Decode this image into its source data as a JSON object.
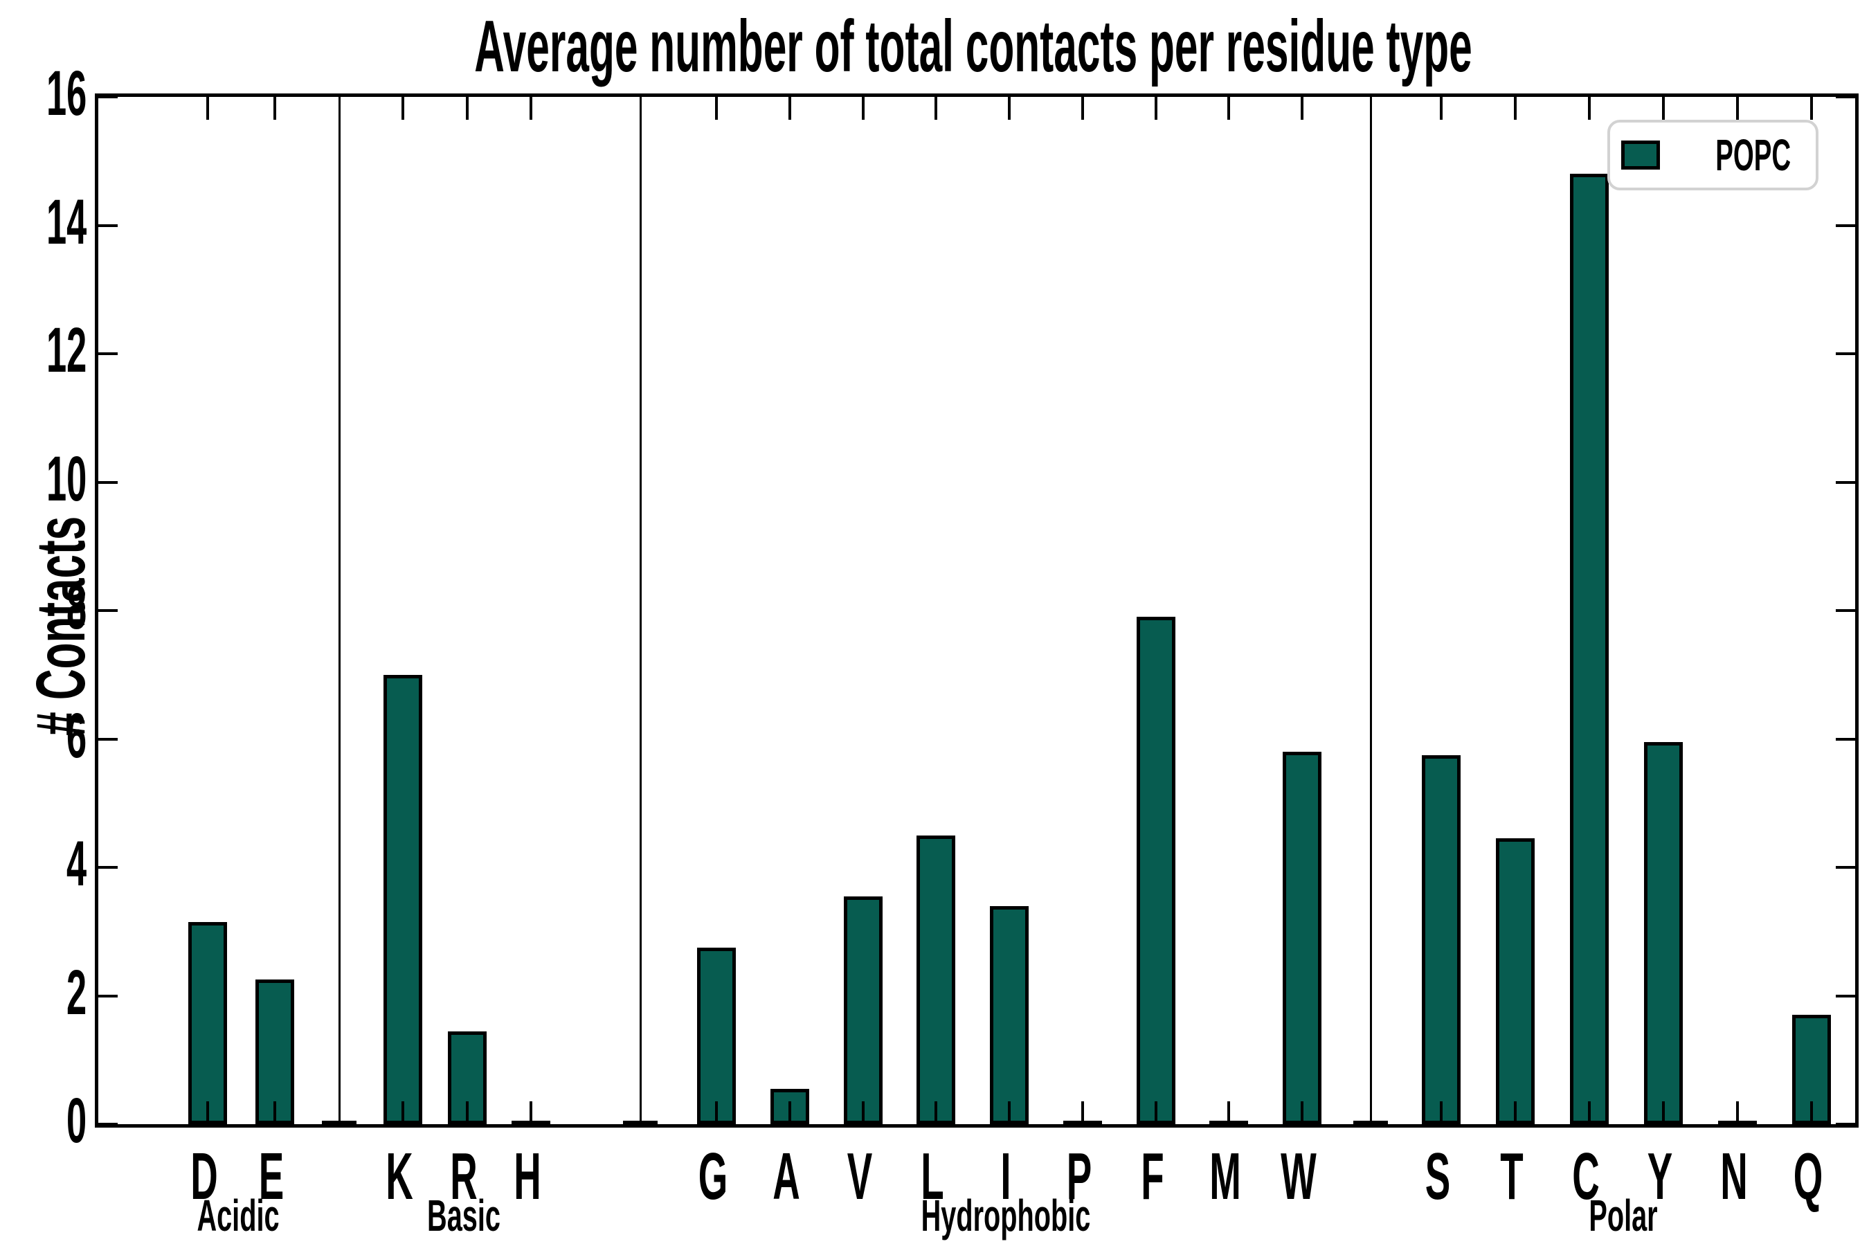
{
  "chart_data": {
    "type": "bar",
    "title": "Average number of total contacts per residue type",
    "xlabel": "",
    "ylabel": "# Contacts",
    "ylim": [
      0,
      16
    ],
    "yticks": [
      0,
      2,
      4,
      6,
      8,
      10,
      12,
      14,
      16
    ],
    "grid": false,
    "bar_color": "#075C50",
    "bar_edge_color": "#000000",
    "separator_color": "#000000",
    "legend": {
      "label": "POPC",
      "position": "upper right",
      "swatch_color": "#075C50",
      "border_color": "#d2d2d2"
    },
    "groups": [
      {
        "label": "Acidic",
        "categories": [
          "D",
          "E"
        ],
        "values": [
          3.15,
          2.25
        ]
      },
      {
        "label": "Basic",
        "categories": [
          "K",
          "R",
          "H"
        ],
        "values": [
          7.0,
          1.45,
          0.02
        ]
      },
      {
        "label": "Hydrophobic",
        "categories": [
          "G",
          "A",
          "V",
          "L",
          "I",
          "P",
          "F",
          "M",
          "W"
        ],
        "values": [
          2.75,
          0.55,
          3.55,
          4.5,
          3.4,
          0.02,
          7.9,
          0.02,
          5.8
        ]
      },
      {
        "label": "Polar",
        "categories": [
          "S",
          "T",
          "C",
          "Y",
          "N",
          "Q"
        ],
        "values": [
          5.75,
          4.45,
          14.8,
          5.95,
          0.02,
          1.7
        ]
      }
    ]
  }
}
